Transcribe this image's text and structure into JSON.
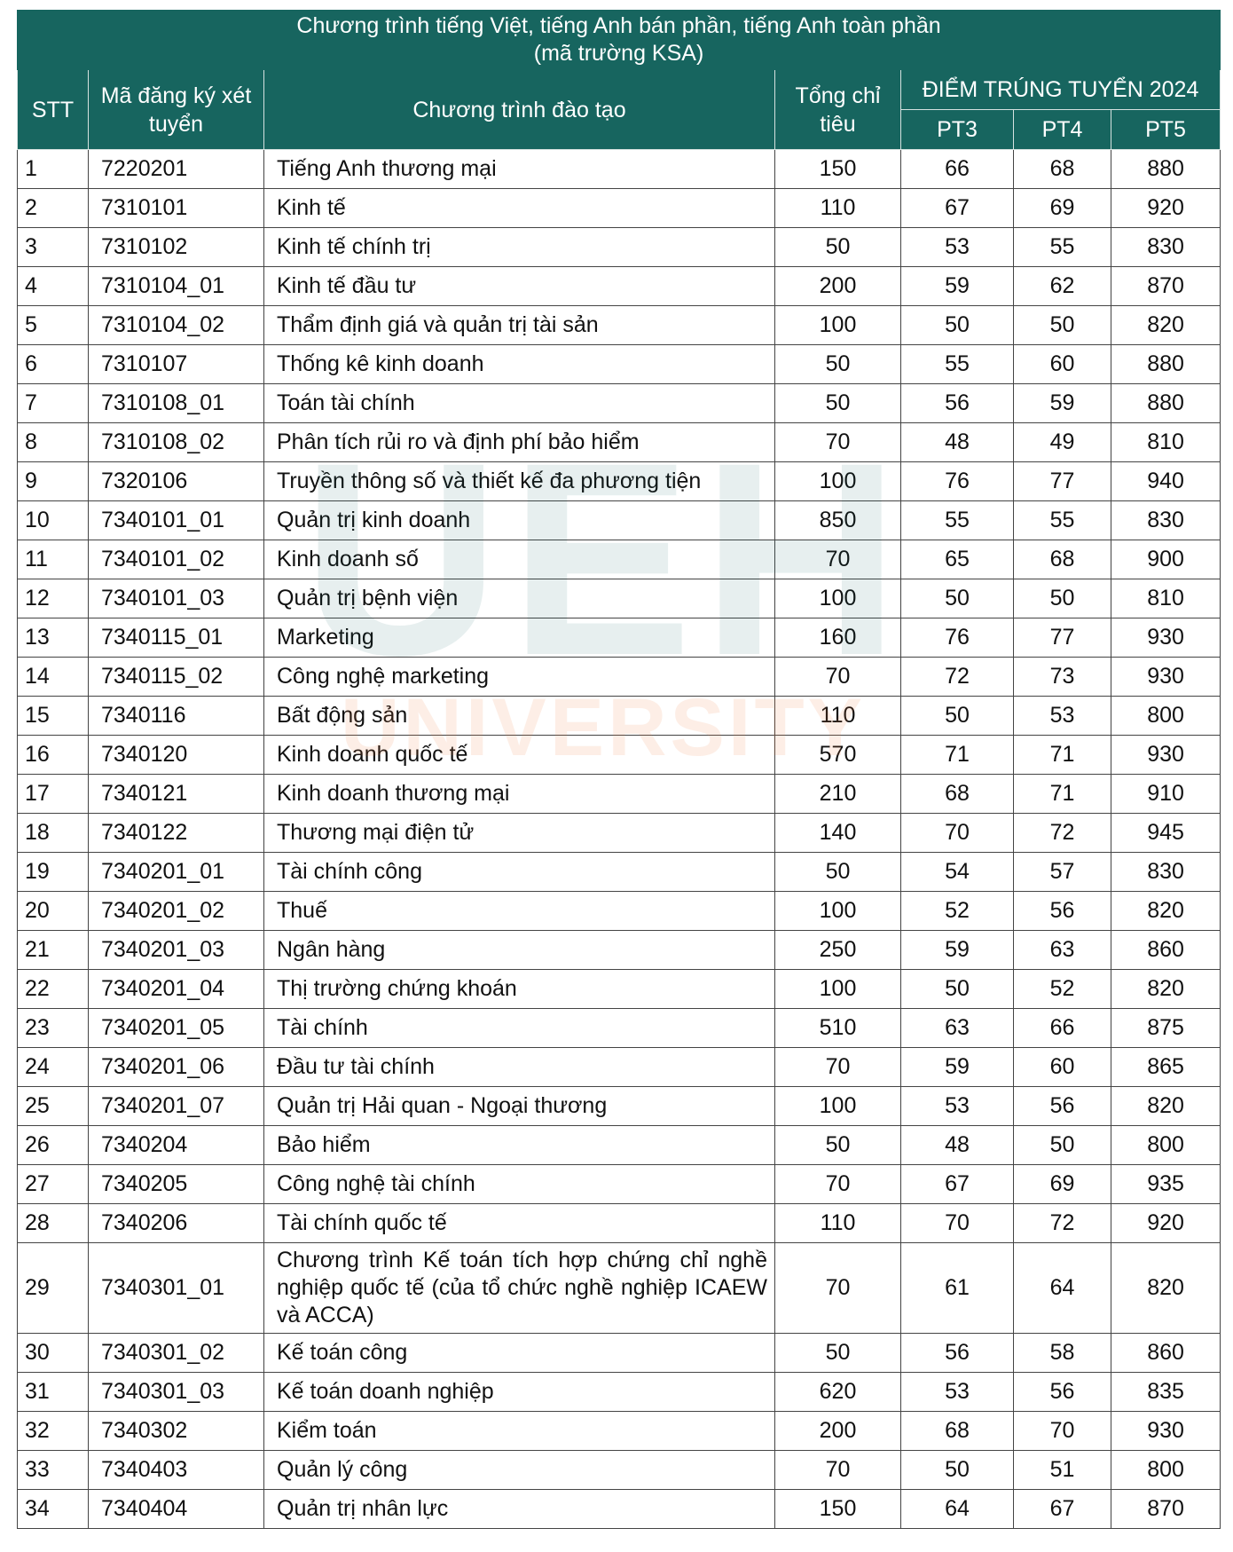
{
  "header": {
    "title_line1": "Chương trình tiếng Việt, tiếng Anh bán phần, tiếng Anh toàn phần",
    "title_line2": "(mã trường KSA)",
    "columns": {
      "stt": "STT",
      "code": "Mã đăng ký xét tuyển",
      "program": "Chương trình đào tạo",
      "quota": "Tổng chỉ tiêu",
      "score_group": "ĐIỂM TRÚNG TUYỂN 2024",
      "pt3": "PT3",
      "pt4": "PT4",
      "pt5": "PT5"
    }
  },
  "watermark": {
    "logo": "UEH",
    "text": "UNIVERSITY"
  },
  "table": {
    "rows": [
      [
        1,
        "7220201",
        "Tiếng Anh thương mại",
        150,
        66,
        68,
        880
      ],
      [
        2,
        "7310101",
        "Kinh tế",
        110,
        67,
        69,
        920
      ],
      [
        3,
        "7310102",
        "Kinh tế chính trị",
        50,
        53,
        55,
        830
      ],
      [
        4,
        "7310104_01",
        "Kinh tế đầu tư",
        200,
        59,
        62,
        870
      ],
      [
        5,
        "7310104_02",
        "Thẩm định giá và quản trị tài sản",
        100,
        50,
        50,
        820
      ],
      [
        6,
        "7310107",
        "Thống kê kinh doanh",
        50,
        55,
        60,
        880
      ],
      [
        7,
        "7310108_01",
        "Toán tài chính",
        50,
        56,
        59,
        880
      ],
      [
        8,
        "7310108_02",
        "Phân tích rủi ro và định phí bảo hiểm",
        70,
        48,
        49,
        810
      ],
      [
        9,
        "7320106",
        "Truyền thông số và thiết kế đa phương tiện",
        100,
        76,
        77,
        940
      ],
      [
        10,
        "7340101_01",
        "Quản trị kinh doanh",
        850,
        55,
        55,
        830
      ],
      [
        11,
        "7340101_02",
        "Kinh doanh số",
        70,
        65,
        68,
        900
      ],
      [
        12,
        "7340101_03",
        "Quản trị bệnh viện",
        100,
        50,
        50,
        810
      ],
      [
        13,
        "7340115_01",
        "Marketing",
        160,
        76,
        77,
        930
      ],
      [
        14,
        "7340115_02",
        "Công nghệ marketing",
        70,
        72,
        73,
        930
      ],
      [
        15,
        "7340116",
        "Bất động sản",
        110,
        50,
        53,
        800
      ],
      [
        16,
        "7340120",
        "Kinh doanh quốc tế",
        570,
        71,
        71,
        930
      ],
      [
        17,
        "7340121",
        "Kinh doanh thương mại",
        210,
        68,
        71,
        910
      ],
      [
        18,
        "7340122",
        "Thương mại điện tử",
        140,
        70,
        72,
        945
      ],
      [
        19,
        "7340201_01",
        "Tài chính công",
        50,
        54,
        57,
        830
      ],
      [
        20,
        "7340201_02",
        "Thuế",
        100,
        52,
        56,
        820
      ],
      [
        21,
        "7340201_03",
        "Ngân hàng",
        250,
        59,
        63,
        860
      ],
      [
        22,
        "7340201_04",
        "Thị trường chứng khoán",
        100,
        50,
        52,
        820
      ],
      [
        23,
        "7340201_05",
        "Tài chính",
        510,
        63,
        66,
        875
      ],
      [
        24,
        "7340201_06",
        "Đầu tư tài chính",
        70,
        59,
        60,
        865
      ],
      [
        25,
        "7340201_07",
        "Quản trị Hải quan - Ngoại thương",
        100,
        53,
        56,
        820
      ],
      [
        26,
        "7340204",
        "Bảo hiểm",
        50,
        48,
        50,
        800
      ],
      [
        27,
        "7340205",
        "Công nghệ tài chính",
        70,
        67,
        69,
        935
      ],
      [
        28,
        "7340206",
        "Tài chính quốc tế",
        110,
        70,
        72,
        920
      ],
      [
        29,
        "7340301_01",
        "Chương trình Kế toán tích hợp chứng chỉ nghề nghiệp quốc tế (của tổ chức nghề nghiệp ICAEW và ACCA)",
        70,
        61,
        64,
        820
      ],
      [
        30,
        "7340301_02",
        "Kế toán công",
        50,
        56,
        58,
        860
      ],
      [
        31,
        "7340301_03",
        "Kế toán doanh nghiệp",
        620,
        53,
        56,
        835
      ],
      [
        32,
        "7340302",
        "Kiểm toán",
        200,
        68,
        70,
        930
      ],
      [
        33,
        "7340403",
        "Quản lý công",
        70,
        50,
        51,
        800
      ],
      [
        34,
        "7340404",
        "Quản trị nhân lực",
        150,
        64,
        67,
        870
      ]
    ]
  }
}
